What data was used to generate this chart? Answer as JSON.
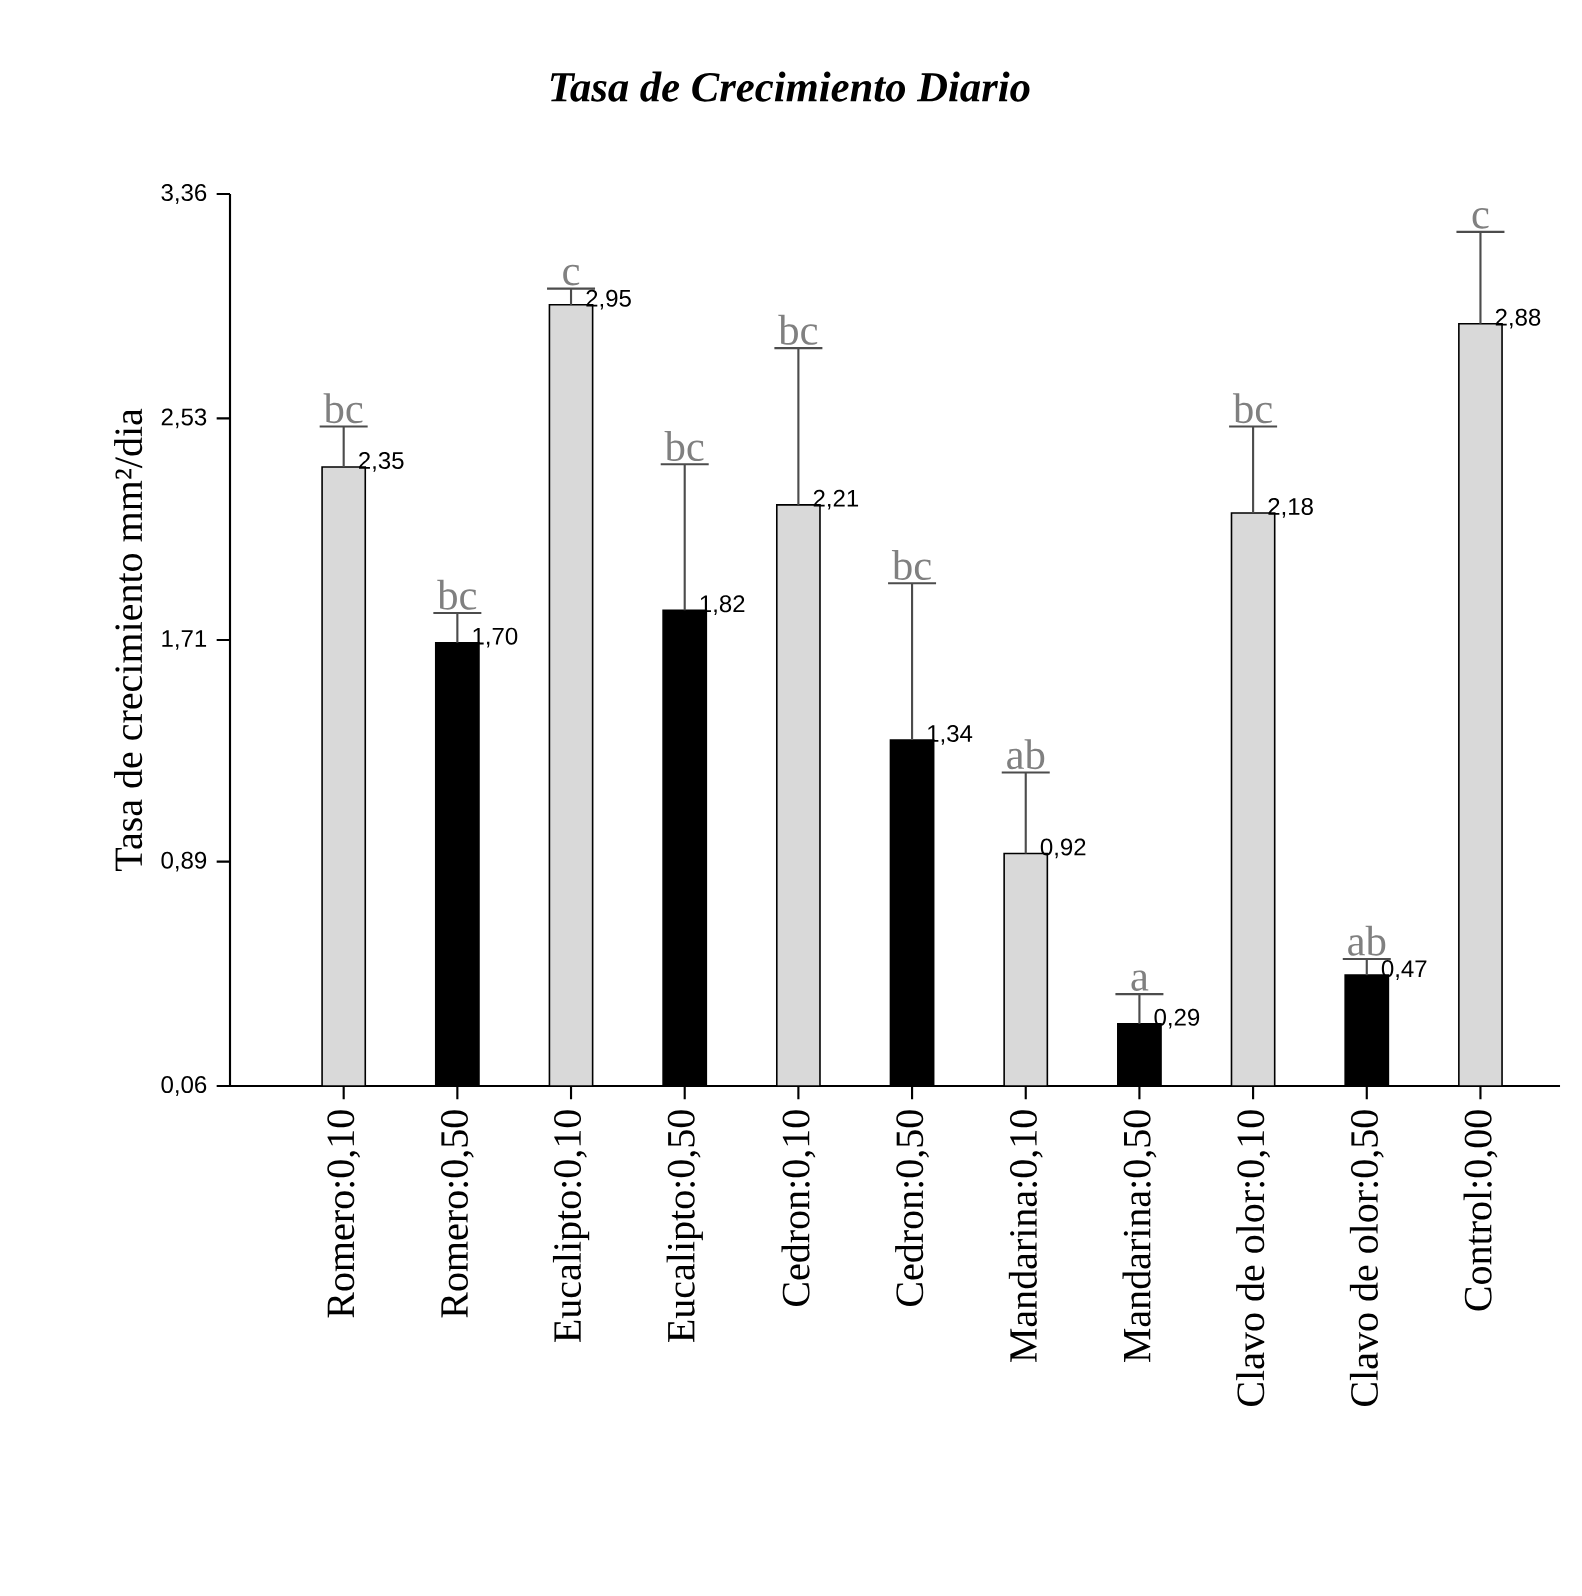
{
  "chart_data": {
    "type": "bar",
    "title": "Tasa de Crecimiento Diario",
    "ylabel": "Tasa de crecimiento mm²/dia",
    "categories": [
      "Romero:0,10",
      "Romero:0,50",
      "Eucalipto:0,10",
      "Eucalipto:0,50",
      "Cedron:0,10",
      "Cedron:0,50",
      "Mandarina:0,10",
      "Mandarina:0,50",
      "Clavo de olor:0,10",
      "Clavo de olor:0,50",
      "Control:0,00"
    ],
    "values": [
      2.35,
      1.7,
      2.95,
      1.82,
      2.21,
      1.34,
      0.92,
      0.29,
      2.18,
      0.47,
      2.88
    ],
    "value_labels": [
      "2,35",
      "1,70",
      "2,95",
      "1,82",
      "2,21",
      "1,34",
      "0,92",
      "0,29",
      "2,18",
      "0,47",
      "2,88"
    ],
    "errors": [
      [
        2.35,
        2.5
      ],
      [
        1.7,
        1.81
      ],
      [
        2.95,
        3.01
      ],
      [
        1.82,
        2.36
      ],
      [
        2.21,
        2.79
      ],
      [
        1.34,
        1.92
      ],
      [
        0.92,
        1.22
      ],
      [
        0.29,
        0.4
      ],
      [
        2.18,
        2.5
      ],
      [
        0.47,
        0.53
      ],
      [
        2.88,
        3.22
      ]
    ],
    "colors": [
      "#d9d9d9",
      "#000000",
      "#d9d9d9",
      "#000000",
      "#d9d9d9",
      "#000000",
      "#d9d9d9",
      "#000000",
      "#d9d9d9",
      "#000000",
      "#d9d9d9"
    ],
    "ylim": [
      0.06,
      3.36
    ],
    "yticks": [
      {
        "value": 0.06,
        "label": "0,06"
      },
      {
        "value": 0.89,
        "label": "0,89"
      },
      {
        "value": 1.71,
        "label": "1,71"
      },
      {
        "value": 2.53,
        "label": "2,53"
      },
      {
        "value": 3.36,
        "label": "3,36"
      }
    ],
    "grid": false,
    "annotations": [
      {
        "text": "bc",
        "x": "Romero:0,10",
        "y": 2.5
      },
      {
        "text": "bc",
        "x": "Romero:0,50",
        "y": 1.81
      },
      {
        "text": "c",
        "x": "Eucalipto:0,10",
        "y": 3.01
      },
      {
        "text": "bc",
        "x": "Eucalipto:0,50",
        "y": 2.36
      },
      {
        "text": "bc",
        "x": "Cedron:0,10",
        "y": 2.79
      },
      {
        "text": "bc",
        "x": "Cedron:0,50",
        "y": 1.92
      },
      {
        "text": "ab",
        "x": "Mandarina:0,10",
        "y": 1.22
      },
      {
        "text": "a",
        "x": "Mandarina:0,50",
        "y": 0.4
      },
      {
        "text": "bc",
        "x": "Clavo de olor:0,10",
        "y": 2.5
      },
      {
        "text": "ab",
        "x": "Clavo de olor:0,50",
        "y": 0.53
      },
      {
        "text": "c",
        "x": "Control:0,00",
        "y": 3.22
      }
    ]
  }
}
